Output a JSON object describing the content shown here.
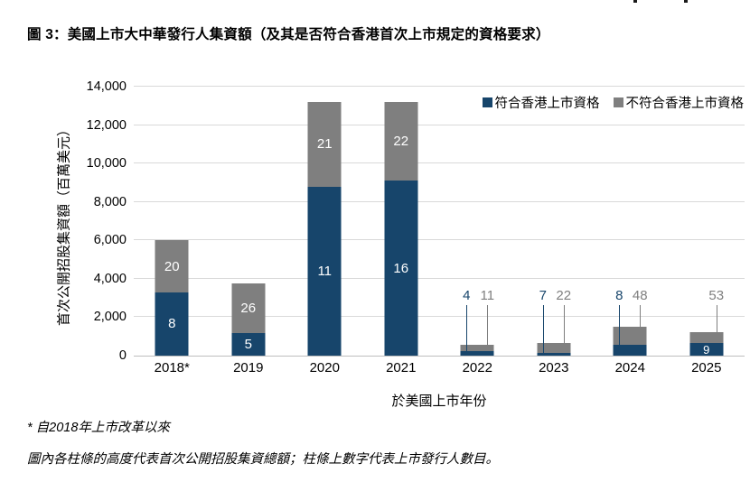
{
  "chart_data": {
    "type": "bar",
    "stacked": true,
    "title": "圖 3：美國上市大中華發行人集資額（及其是否符合香港首次上市規定的資格要求）",
    "categories": [
      "2018*",
      "2019",
      "2020",
      "2021",
      "2022",
      "2023",
      "2024",
      "2025"
    ],
    "series": [
      {
        "name": "符合香港上市資格",
        "color": "#17456b",
        "values": [
          3300,
          1200,
          8800,
          9100,
          240,
          150,
          550,
          640
        ],
        "issuer_counts": [
          8,
          5,
          11,
          16,
          4,
          7,
          8,
          9
        ]
      },
      {
        "name": "不符合香港上市資格",
        "color": "#7f7f7f",
        "values": [
          2700,
          2550,
          4400,
          4100,
          340,
          500,
          940,
          580
        ],
        "issuer_counts": [
          20,
          26,
          21,
          22,
          11,
          22,
          48,
          53
        ]
      }
    ],
    "count_label_placement": [
      [
        "inside",
        "inside"
      ],
      [
        "inside",
        "inside"
      ],
      [
        "inside",
        "inside"
      ],
      [
        "inside",
        "inside"
      ],
      [
        "callout",
        "callout"
      ],
      [
        "callout",
        "callout"
      ],
      [
        "callout",
        "callout"
      ],
      [
        "inside",
        "callout"
      ]
    ],
    "xlabel": "於美國上市年份",
    "ylabel": "首次公開招股集資額（百萬美元）",
    "ylim": [
      0,
      14000
    ],
    "ytick_step": 2000,
    "yticks": [
      "0",
      "2,000",
      "4,000",
      "6,000",
      "8,000",
      "10,000",
      "12,000",
      "14,000"
    ],
    "grid": "horizontal",
    "legend_position": "top-right-inside",
    "gridline_color": "#d9d9d9",
    "axis_line_color": "#bfbfbf"
  },
  "footnotes": [
    "* 自2018年上市改革以來",
    "圖內各柱條的高度代表首次公開招股集資總額；柱條上數字代表上市發行人數目。"
  ]
}
